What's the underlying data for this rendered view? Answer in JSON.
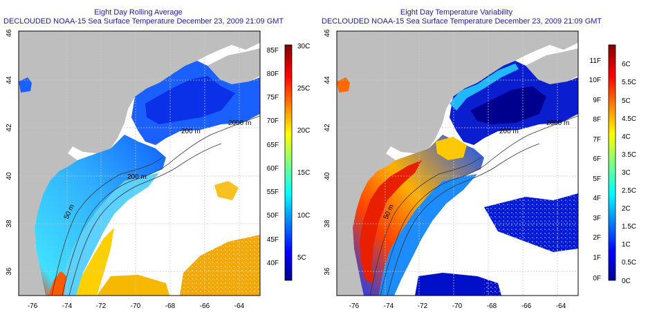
{
  "left_panel": {
    "title": "Eight Day Rolling Average",
    "subtitle": "DECLOUDED NOAA-15 Sea Surface Temperature December 23, 2009 21:09 GMT",
    "lat_ticks": [
      "46",
      "44",
      "42",
      "40",
      "38",
      "36"
    ],
    "lon_ticks": [
      "-76",
      "-74",
      "-72",
      "-70",
      "-68",
      "-66",
      "-64"
    ],
    "contour_labels": [
      "2000 m",
      "200 m",
      "200 m",
      "50 m"
    ],
    "colorbar": {
      "fahrenheit": [
        "85F",
        "80F",
        "75F",
        "70F",
        "65F",
        "60F",
        "55F",
        "50F",
        "45F",
        "40F"
      ],
      "celsius": [
        "30C",
        "25C",
        "20C",
        "15C",
        "10C",
        "5C"
      ]
    }
  },
  "right_panel": {
    "title": "Eight Day Temperature Variability",
    "subtitle": "DECLOUDED NOAA-15 Sea Surface Temperature December 23, 2009 21:09 GMT",
    "lat_ticks": [
      "46",
      "44",
      "42",
      "40",
      "38",
      "36"
    ],
    "lon_ticks": [
      "-76",
      "-74",
      "-72",
      "-70",
      "-68",
      "-66",
      "-64"
    ],
    "contour_labels": [
      "2000 m",
      "200 m",
      "50 m"
    ],
    "colorbar": {
      "fahrenheit": [
        "11F",
        "10F",
        "9F",
        "8F",
        "7F",
        "6F",
        "5F",
        "4F",
        "3F",
        "2F",
        "1F",
        "0F"
      ],
      "celsius": [
        "6C",
        "5.5C",
        "5C",
        "4.5C",
        "4C",
        "3.5C",
        "3C",
        "2.5C",
        "2C",
        "1.5C",
        "1C",
        "0.5C",
        "0C"
      ]
    }
  },
  "colors": {
    "title": "#1a1aa6",
    "land": "#bebebe",
    "no_data": "#ffffff",
    "jet_scale": [
      "#00008f",
      "#0000ff",
      "#0080ff",
      "#00ffff",
      "#80ff80",
      "#ffff00",
      "#ff8000",
      "#ff0000",
      "#800000"
    ]
  }
}
